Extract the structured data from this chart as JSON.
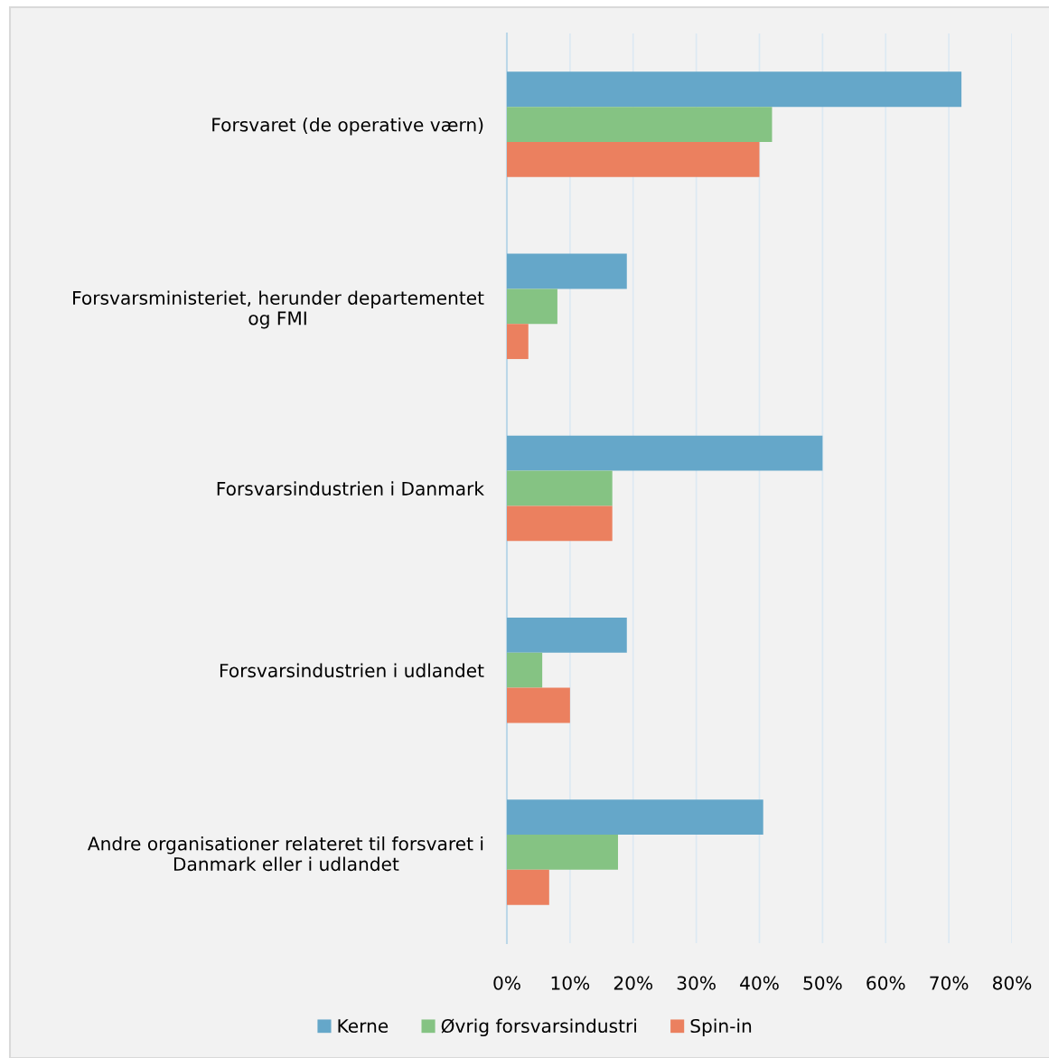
{
  "chart_data": {
    "type": "bar",
    "orientation": "horizontal",
    "categories": [
      "Forsvaret (de operative værn)",
      "Forsvarsministeriet, herunder departementet\nog FMI",
      "Forsvarsindustrien i Danmark",
      "Forsvarsindustrien i udlandet",
      "Andre organisationer relateret til forsvaret i\nDanmark eller i udlandet"
    ],
    "series": [
      {
        "name": "Kerne",
        "color": "#65a7c9",
        "values": [
          72,
          19,
          50,
          19,
          40.6
        ]
      },
      {
        "name": "Øvrig forsvarsindustri",
        "color": "#85c383",
        "values": [
          42,
          8,
          16.7,
          5.6,
          17.6
        ]
      },
      {
        "name": "Spin-in",
        "color": "#eb805f",
        "values": [
          40,
          3.4,
          16.7,
          10,
          6.7
        ]
      }
    ],
    "xlim": [
      0,
      80
    ],
    "xticks": [
      {
        "value": 0,
        "label": "0%"
      },
      {
        "value": 10,
        "label": "10%"
      },
      {
        "value": 20,
        "label": "20%"
      },
      {
        "value": 30,
        "label": "30%"
      },
      {
        "value": 40,
        "label": "40%"
      },
      {
        "value": 50,
        "label": "50%"
      },
      {
        "value": 60,
        "label": "60%"
      },
      {
        "value": 70,
        "label": "70%"
      },
      {
        "value": 80,
        "label": "80%"
      }
    ],
    "grid": "x",
    "legend": "bottom"
  }
}
